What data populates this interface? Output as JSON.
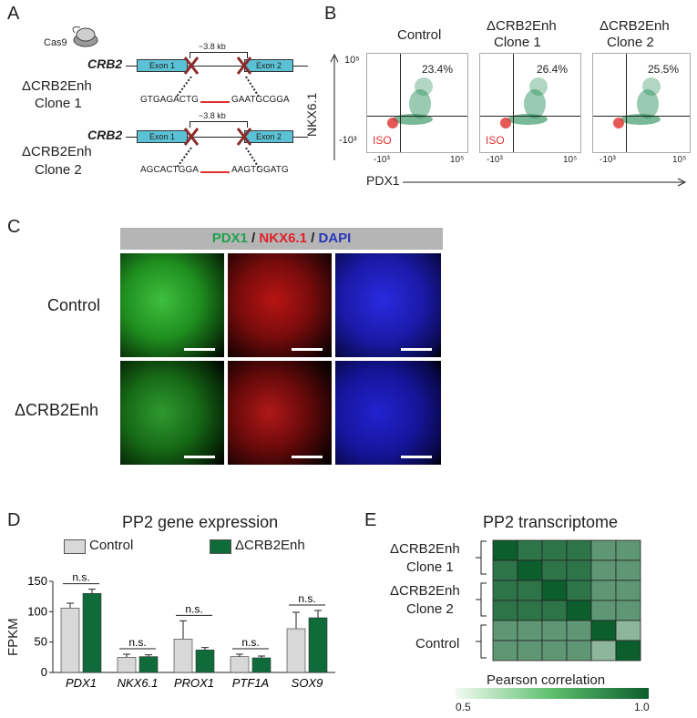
{
  "panels": {
    "a": "A",
    "b": "B",
    "c": "C",
    "d": "D",
    "e": "E"
  },
  "panel_a": {
    "cas9": "Cas9",
    "gene": "CRB2",
    "distance": "~3.8 kb",
    "exon1": "Exon 1",
    "exon2": "Exon 2",
    "clone1_line1": "ΔCRB2Enh",
    "clone1_line2": "Clone 1",
    "clone1_seq_left": "GTGAGACTG",
    "clone1_seq_right": "GAATGCGGA",
    "clone2_line1": "ΔCRB2Enh",
    "clone2_line2": "Clone 2",
    "clone2_seq_left": "AGCACTGGA",
    "clone2_seq_right": "AAGTGGATG"
  },
  "panel_b": {
    "ylabel": "NKX6.1",
    "xlabel": "PDX1",
    "ytick_top": "10⁵",
    "ytick_bottom": "-10³",
    "xtick_left": "-10³",
    "xtick_right": "10⁵",
    "iso": "ISO",
    "plots": [
      {
        "title1": "Control",
        "title2": "",
        "percent": "23.4%"
      },
      {
        "title1": "ΔCRB2Enh",
        "title2": "Clone 1",
        "percent": "26.4%"
      },
      {
        "title1": "ΔCRB2Enh",
        "title2": "Clone 2",
        "percent": "25.5%"
      }
    ]
  },
  "panel_c": {
    "header_pdx1": "PDX1",
    "header_sep": " / ",
    "header_nkx": "NKX6.1",
    "header_dapi": "DAPI",
    "row1": "Control",
    "row2": "ΔCRB2Enh",
    "colors": {
      "green": "#1ea24a",
      "red": "#e0202a",
      "blue": "#2838b8"
    }
  },
  "panel_d": {
    "title": "PP2 gene expression",
    "legend_control": "Control",
    "legend_enh": "ΔCRB2Enh",
    "ylabel": "FPKM",
    "yticks": [
      "0",
      "50",
      "100",
      "150"
    ],
    "ns": "n.s.",
    "colors": {
      "control": "#d8d8d8",
      "enh": "#0f6b3a"
    }
  },
  "panel_e": {
    "title": "PP2 transcriptome",
    "row_clone1_a": "ΔCRB2Enh",
    "row_clone1_b": "Clone 1",
    "row_clone2_a": "ΔCRB2Enh",
    "row_clone2_b": "Clone 2",
    "row_control": "Control",
    "colorbar_label": "Pearson correlation",
    "cb_min": "0.5",
    "cb_max": "1.0"
  },
  "chart_data": [
    {
      "type": "bar",
      "title": "PP2 gene expression",
      "xlabel": "",
      "ylabel": "FPKM",
      "ylim": [
        0,
        150
      ],
      "categories": [
        "PDX1",
        "NKX6.1",
        "PROX1",
        "PTF1A",
        "SOX9"
      ],
      "series": [
        {
          "name": "Control",
          "values": [
            106,
            25,
            55,
            26,
            72
          ],
          "errors": [
            8,
            5,
            30,
            4,
            27
          ]
        },
        {
          "name": "ΔCRB2Enh",
          "values": [
            130,
            26,
            37,
            24,
            90
          ],
          "errors": [
            7,
            3,
            4,
            3,
            12
          ]
        }
      ],
      "annotations": [
        "n.s.",
        "n.s.",
        "n.s.",
        "n.s.",
        "n.s."
      ],
      "legend": "top"
    },
    {
      "type": "heatmap",
      "title": "PP2 transcriptome",
      "rows": 6,
      "cols": 6,
      "colorbar": {
        "label": "Pearson correlation",
        "min": 0.5,
        "max": 1.0
      },
      "values": [
        [
          1.0,
          0.93,
          0.93,
          0.93,
          0.82,
          0.82
        ],
        [
          0.93,
          1.0,
          0.93,
          0.93,
          0.82,
          0.82
        ],
        [
          0.93,
          0.93,
          1.0,
          0.93,
          0.82,
          0.82
        ],
        [
          0.93,
          0.93,
          0.93,
          1.0,
          0.82,
          0.82
        ],
        [
          0.82,
          0.82,
          0.82,
          0.82,
          1.0,
          0.72
        ],
        [
          0.82,
          0.82,
          0.82,
          0.82,
          0.72,
          1.0
        ]
      ]
    }
  ]
}
